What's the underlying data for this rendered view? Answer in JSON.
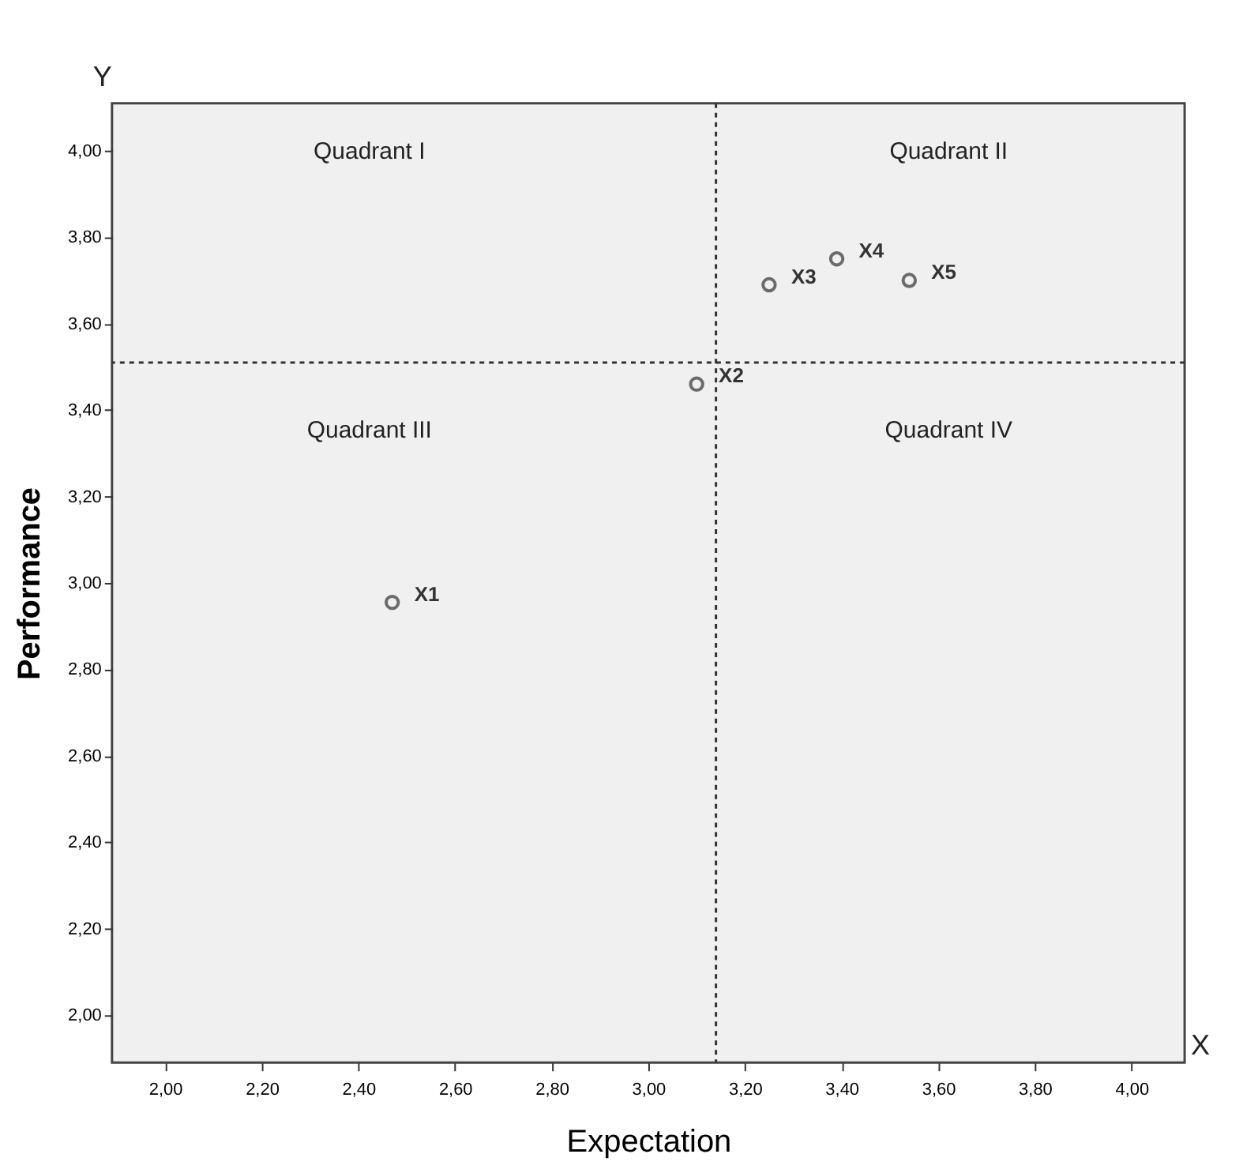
{
  "chart_data": {
    "type": "scatter",
    "xlabel": "Expectation",
    "ylabel": "Performance",
    "x": [
      2.47,
      3.1,
      3.25,
      3.39,
      3.54
    ],
    "series": [
      {
        "color": "#333333",
        "values": [
          2.955,
          3.46,
          3.69,
          3.75,
          3.7
        ]
      }
    ],
    "marker": "circle",
    "xlim": [
      1.89,
      4.11
    ],
    "ylim": [
      1.89,
      4.11
    ],
    "xticks": [
      {
        "value": 2.0,
        "label": "2,00"
      },
      {
        "value": 2.2,
        "label": "2,20"
      },
      {
        "value": 2.4,
        "label": "2,40"
      },
      {
        "value": 2.6,
        "label": "2,60"
      },
      {
        "value": 2.8,
        "label": "2,80"
      },
      {
        "value": 3.0,
        "label": "3,00"
      },
      {
        "value": 3.2,
        "label": "3,20"
      },
      {
        "value": 3.4,
        "label": "3,40"
      },
      {
        "value": 3.6,
        "label": "3,60"
      },
      {
        "value": 3.8,
        "label": "3,80"
      },
      {
        "value": 4.0,
        "label": "4,00"
      }
    ],
    "yticks": [
      {
        "value": 2.0,
        "label": "2,00"
      },
      {
        "value": 2.2,
        "label": "2,20"
      },
      {
        "value": 2.4,
        "label": "2,40"
      },
      {
        "value": 2.6,
        "label": "2,60"
      },
      {
        "value": 2.8,
        "label": "2,80"
      },
      {
        "value": 3.0,
        "label": "3,00"
      },
      {
        "value": 3.2,
        "label": "3,20"
      },
      {
        "value": 3.4,
        "label": "3,40"
      },
      {
        "value": 3.6,
        "label": "3,60"
      },
      {
        "value": 3.8,
        "label": "3,80"
      },
      {
        "value": 4.0,
        "label": "4,00"
      }
    ],
    "ref_lines": [
      {
        "axis": "x",
        "value": 3.14,
        "color": "#333333",
        "line_style": "dotted"
      },
      {
        "axis": "y",
        "value": 3.51,
        "color": "#333333",
        "line_style": "dotted"
      }
    ],
    "annotations": [
      "Y",
      "X",
      "Quadrant I",
      "Quadrant II",
      "Quadrant III",
      "Quadrant IV",
      {
        "text": "X1",
        "x": 2.47,
        "y": 2.955
      },
      {
        "text": "X2",
        "x": 3.1,
        "y": 3.46
      },
      {
        "text": "X3",
        "x": 3.25,
        "y": 3.69
      },
      {
        "text": "X4",
        "x": 3.39,
        "y": 3.75
      },
      {
        "text": "X5",
        "x": 3.54,
        "y": 3.7
      }
    ],
    "grid": false
  }
}
